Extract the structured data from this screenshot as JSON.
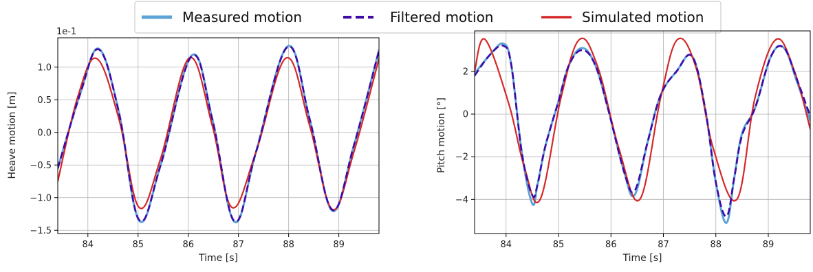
{
  "legend": {
    "items": [
      {
        "label": "Measured motion",
        "color": "#5ea3d6",
        "style": "solid"
      },
      {
        "label": "Filtered motion",
        "color": "#3d0aa8",
        "style": "dashed"
      },
      {
        "label": "Simulated motion",
        "color": "#d62728",
        "style": "solid"
      }
    ]
  },
  "chart_data": [
    {
      "type": "line",
      "xlabel": "Time [s]",
      "ylabel": "Heave motion [m]",
      "y_scale_label": "1e-1",
      "xlim": [
        83.4,
        89.8
      ],
      "ylim": [
        -1.55,
        1.45
      ],
      "xticks": [
        84,
        85,
        86,
        87,
        88,
        89
      ],
      "yticks": [
        -1.5,
        -1.0,
        -0.5,
        0.0,
        0.5,
        1.0
      ],
      "ytick_labels": [
        "−1.5",
        "−1.0",
        "−0.5",
        "0.0",
        "0.5",
        "1.0"
      ],
      "grid": true,
      "series": [
        {
          "name": "Measured motion",
          "x": [
            83.4,
            83.85,
            84.22,
            84.62,
            85.02,
            85.45,
            86.07,
            86.48,
            86.92,
            87.35,
            87.98,
            88.42,
            88.87,
            89.3,
            89.8
          ],
          "y": [
            -0.55,
            0.6,
            1.28,
            0.3,
            -1.35,
            -0.5,
            1.18,
            0.2,
            -1.37,
            -0.3,
            1.32,
            0.2,
            -1.2,
            -0.2,
            1.26
          ]
        },
        {
          "name": "Filtered motion",
          "x": [
            83.4,
            83.85,
            84.22,
            84.62,
            85.02,
            85.45,
            86.07,
            86.48,
            86.92,
            87.35,
            87.98,
            88.42,
            88.87,
            89.3,
            89.8
          ],
          "y": [
            -0.55,
            0.6,
            1.27,
            0.3,
            -1.34,
            -0.5,
            1.17,
            0.2,
            -1.36,
            -0.3,
            1.31,
            0.2,
            -1.19,
            -0.2,
            1.25
          ]
        },
        {
          "name": "Simulated motion",
          "x": [
            83.4,
            83.8,
            84.18,
            84.62,
            85.02,
            85.45,
            86.02,
            86.48,
            86.87,
            87.35,
            87.95,
            88.42,
            88.87,
            89.3,
            89.8
          ],
          "y": [
            -0.75,
            0.55,
            1.13,
            0.2,
            -1.15,
            -0.4,
            1.14,
            0.1,
            -1.15,
            -0.3,
            1.14,
            0.1,
            -1.18,
            -0.3,
            1.13
          ]
        }
      ]
    },
    {
      "type": "line",
      "xlabel": "Time [s]",
      "ylabel": "Pitch motion [°]",
      "xlim": [
        83.4,
        89.8
      ],
      "ylim": [
        -5.6,
        3.9
      ],
      "xticks": [
        84,
        85,
        86,
        87,
        88,
        89
      ],
      "yticks": [
        -4,
        -2,
        0,
        2
      ],
      "ytick_labels": [
        "−4",
        "−2",
        "0",
        "2"
      ],
      "grid": true,
      "series": [
        {
          "name": "Measured motion",
          "x": [
            83.4,
            83.7,
            83.95,
            84.1,
            84.3,
            84.5,
            84.6,
            84.75,
            85.0,
            85.2,
            85.45,
            85.7,
            85.95,
            86.25,
            86.45,
            86.7,
            86.95,
            87.25,
            87.55,
            87.8,
            88.0,
            88.2,
            88.35,
            88.5,
            88.75,
            89.05,
            89.3,
            89.55,
            89.8
          ],
          "y": [
            1.9,
            2.8,
            3.3,
            2.3,
            -1.8,
            -4.2,
            -3.3,
            -1.5,
            0.6,
            2.3,
            3.1,
            2.3,
            0.2,
            -2.7,
            -3.8,
            -1.3,
            0.9,
            2.0,
            2.7,
            0.2,
            -3.2,
            -5.1,
            -3.0,
            -0.9,
            0.3,
            2.7,
            3.1,
            1.5,
            -0.3
          ]
        },
        {
          "name": "Filtered motion",
          "x": [
            83.4,
            83.7,
            83.95,
            84.1,
            84.3,
            84.5,
            84.6,
            84.75,
            85.0,
            85.2,
            85.45,
            85.7,
            85.95,
            86.25,
            86.45,
            86.7,
            86.95,
            87.25,
            87.55,
            87.8,
            88.0,
            88.2,
            88.35,
            88.5,
            88.75,
            89.05,
            89.3,
            89.55,
            89.8
          ],
          "y": [
            1.8,
            2.8,
            3.2,
            2.3,
            -1.8,
            -3.8,
            -3.3,
            -1.5,
            0.6,
            2.3,
            3.0,
            2.3,
            0.2,
            -2.7,
            -3.6,
            -1.3,
            0.9,
            2.0,
            2.7,
            0.2,
            -3.2,
            -4.8,
            -3.0,
            -1.0,
            0.3,
            2.7,
            3.1,
            1.6,
            -0.1
          ]
        },
        {
          "name": "Simulated motion",
          "x": [
            83.4,
            83.6,
            84.05,
            84.35,
            84.65,
            85.05,
            85.4,
            85.75,
            86.15,
            86.55,
            86.95,
            87.27,
            87.62,
            87.95,
            88.4,
            88.75,
            89.15,
            89.5,
            89.8
          ],
          "y": [
            2.0,
            3.5,
            0.5,
            -2.5,
            -4.0,
            0.8,
            3.5,
            2.2,
            -1.6,
            -4.0,
            0.8,
            3.5,
            2.2,
            -1.6,
            -4.0,
            0.8,
            3.5,
            2.0,
            -0.7
          ]
        }
      ]
    }
  ]
}
